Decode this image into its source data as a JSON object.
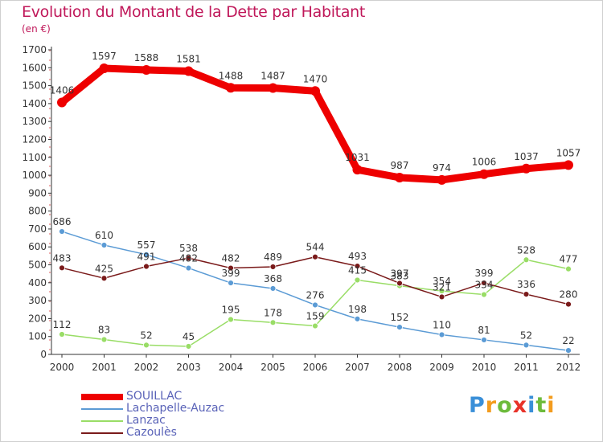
{
  "title": "Evolution du Montant de la Dette par Habitant",
  "unit": "(en €)",
  "brand": "Proxiti",
  "chart_data": {
    "type": "line",
    "ylim": [
      0,
      1700
    ],
    "y_ticks": [
      0,
      100,
      200,
      300,
      400,
      500,
      600,
      700,
      800,
      900,
      1000,
      1100,
      1200,
      1300,
      1400,
      1500,
      1600,
      1700
    ],
    "grid": false,
    "legend_position": "bottom-left",
    "x": [
      "2000",
      "2001",
      "2002",
      "2003",
      "2004",
      "2005",
      "2006",
      "2007",
      "2008",
      "2009",
      "2010",
      "2011",
      "2012"
    ],
    "series": [
      {
        "name": "SOUILLAC",
        "color": "#ee0000",
        "values": [
          1406,
          1597,
          1588,
          1581,
          1488,
          1487,
          1470,
          1031,
          987,
          974,
          1006,
          1037,
          1057
        ]
      },
      {
        "name": "Lachapelle-Auzac",
        "color": "#5b9bd5",
        "values": [
          686,
          610,
          557,
          482,
          399,
          368,
          276,
          198,
          152,
          110,
          81,
          52,
          22
        ]
      },
      {
        "name": "Lanzac",
        "color": "#99dd66",
        "values": [
          112,
          83,
          52,
          45,
          195,
          178,
          159,
          415,
          383,
          354,
          334,
          528,
          477
        ]
      },
      {
        "name": "Cazoulès",
        "color": "#7a1a1a",
        "values": [
          483,
          425,
          491,
          538,
          482,
          489,
          544,
          493,
          397,
          321,
          399,
          336,
          280
        ]
      }
    ]
  }
}
